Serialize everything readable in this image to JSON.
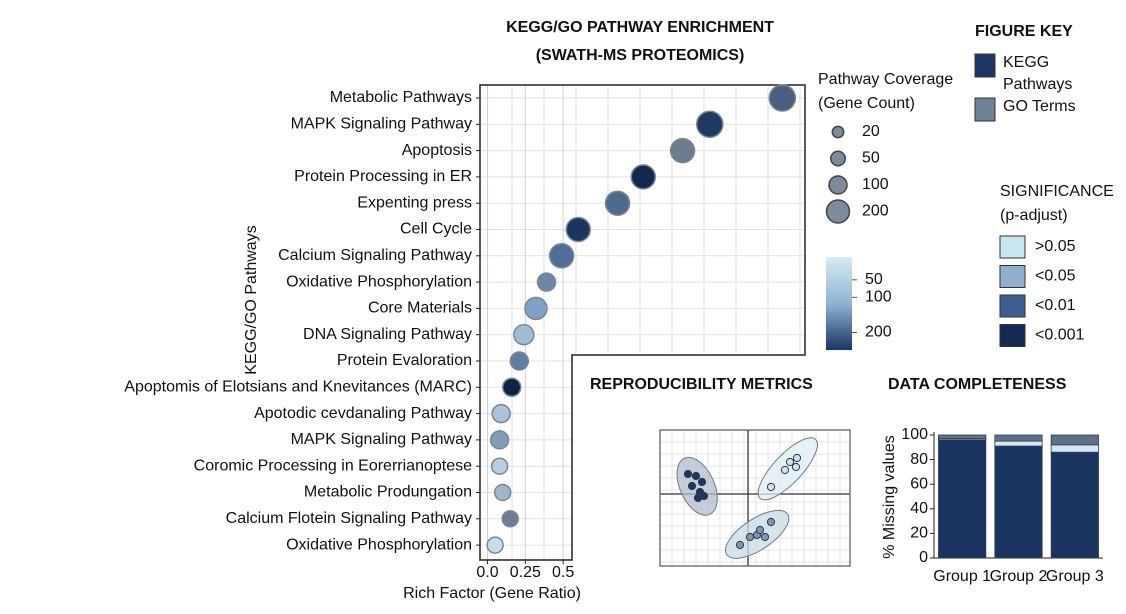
{
  "chart_data": [
    {
      "type": "dot",
      "title": "KEGG/GO PATHWAY ENRICHMENT",
      "subtitle": "(SWATH-MS PROTEOMICS)",
      "x_label": "Rich Factor (Gene Ratio)",
      "y_label": "KEGG/GO Pathways",
      "categories": [
        "Metabolic Pathways",
        "MAPK Signaling Pathway",
        "Apoptosis",
        "Protein Processing in ER",
        "Expenting press",
        "Cell Cycle",
        "Calcium Signaling Pathway",
        "Oxidative Phosphorylation",
        "Core Materials",
        "DNA Signaling Pathway",
        "Protein Evaloration",
        "Apoptomis of Elotsians and Knevitances (MARC)",
        "Apotodic cevdanaling Pathway",
        "MAPK Signaling Pathway",
        "Coromic Processing in Eorerrianoptese",
        "Metabolic Produngation",
        "Calcium Flotein Signaling Pathway",
        "Oxidative Phosphorylation"
      ],
      "values": [
        1.95,
        1.47,
        1.29,
        1.03,
        0.86,
        0.6,
        0.49,
        0.39,
        0.32,
        0.24,
        0.21,
        0.16,
        0.09,
        0.08,
        0.08,
        0.1,
        0.15,
        0.05
      ],
      "sizes": [
        280,
        280,
        225,
        225,
        225,
        225,
        225,
        100,
        178,
        136,
        100,
        100,
        100,
        100,
        69,
        69,
        69,
        69
      ],
      "colors": [
        "#4a5f7e",
        "#1f3a63",
        "#6d7c8f",
        "#12284d",
        "#4c6a8e",
        "#1a3560",
        "#4d6f97",
        "#6b88a8",
        "#7ea3c6",
        "#9dbcd6",
        "#5f7fa0",
        "#0f2347",
        "#a9c3da",
        "#7f9db8",
        "#b7cfe0",
        "#9eb7cc",
        "#6a7f95",
        "#c9dcea"
      ],
      "xlim": [
        -0.05,
        2.1
      ],
      "xticks": [
        {
          "value": 0,
          "label": "0.0"
        },
        0.25,
        0.5
      ],
      "grid": true,
      "legend": {
        "title": "FIGURE KEY",
        "items": [
          {
            "label": [
              "KEGG",
              "Pathways"
            ],
            "color": "#1c3766"
          },
          {
            "label": [
              "GO Terms"
            ],
            "color": "#6f8196"
          }
        ]
      },
      "size_legend": {
        "title": [
          "Pathway Coverage",
          "(Gene Count)"
        ],
        "values": [
          20,
          50,
          100,
          200
        ],
        "color": "#7d8c9c"
      },
      "colorbar": {
        "lim": [
          -15,
          250
        ],
        "ticks": [
          50,
          100,
          200
        ],
        "colors": [
          "#d7ecf5",
          "#8eb4d2",
          "#1a3565"
        ]
      },
      "significance": {
        "title": [
          "SIGNIFICANCE",
          "(p-adjust)"
        ],
        "items": [
          {
            "label": ">0.05",
            "color": "#c8e6f0"
          },
          {
            "label": "<0.05",
            "color": "#8fb0cc"
          },
          {
            "label": "<0.01",
            "color": "#3d5f8f"
          },
          {
            "label": "<0.001",
            "color": "#142a52"
          }
        ]
      }
    },
    {
      "type": "scatter",
      "title": "REPRODUCIBILITY METRICS",
      "xlim": [
        -4.4,
        5.1
      ],
      "ylim": [
        -3.6,
        3.2
      ],
      "series": [
        {
          "color": "#1e3560",
          "ellipse_color": "#b0bccb",
          "x": [
            -3.0,
            -2.6,
            -2.3,
            -2.8,
            -2.4,
            -2.5,
            -2.2
          ],
          "y": [
            1.0,
            0.9,
            0.6,
            0.4,
            0.1,
            -0.2,
            -0.1
          ]
        },
        {
          "color": "#cde4ee",
          "ellipse_color": "#dfeef4",
          "x": [
            2.1,
            2.45,
            2.4,
            1.85,
            1.15
          ],
          "y": [
            1.6,
            1.8,
            1.35,
            1.2,
            0.35
          ]
        },
        {
          "color": "#7b96ae",
          "ellipse_color": "#c9dbe4",
          "x": [
            -0.4,
            0.1,
            0.45,
            0.85,
            1.15,
            0.6
          ],
          "y": [
            -2.55,
            -2.15,
            -2.05,
            -2.15,
            -1.4,
            -1.8
          ]
        }
      ]
    },
    {
      "type": "bar",
      "title": "DATA COMPLETENESS",
      "y_label": "% Missing values",
      "categories": [
        "Group 1",
        "Group 2",
        "Group 3"
      ],
      "series": [
        {
          "color": "#1b3563",
          "values": [
            96,
            91,
            86
          ]
        },
        {
          "color": "#d3e8f0",
          "values": [
            1,
            4,
            6
          ]
        },
        {
          "color": "#5d7288",
          "values": [
            3,
            5,
            8
          ]
        }
      ],
      "ylim": [
        0,
        100
      ],
      "yticks": [
        0,
        20,
        40,
        60,
        80,
        100
      ],
      "stacked": true
    }
  ]
}
